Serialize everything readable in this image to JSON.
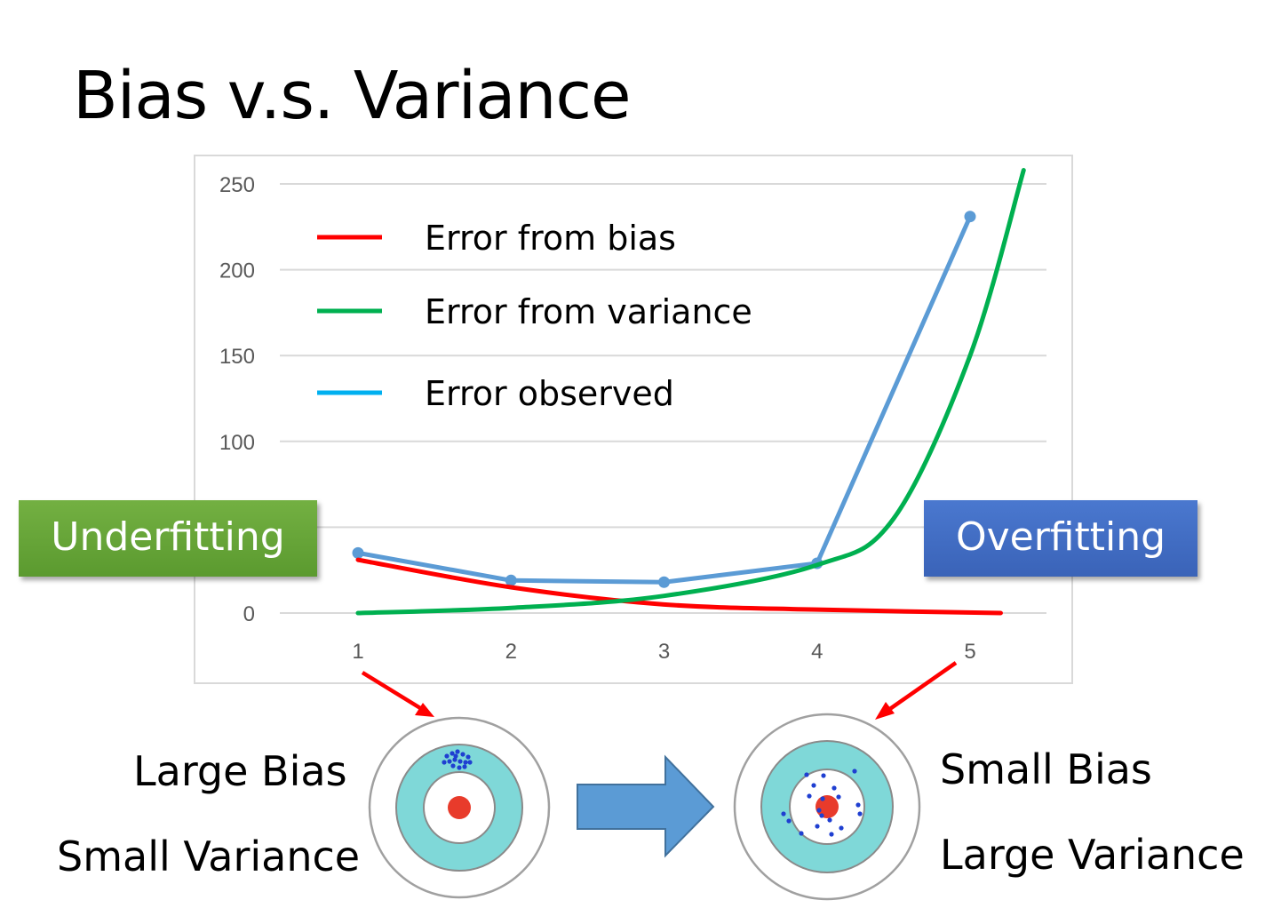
{
  "slide": {
    "title": "Bias v.s. Variance",
    "underfitting_label": "Underfitting",
    "overfitting_label": "Overfitting",
    "left_captions": [
      "Large Bias",
      "Small Variance"
    ],
    "right_captions": [
      "Small Bias",
      "Large Variance"
    ],
    "colors": {
      "underfitting_box": "#5e9f32",
      "overfitting_box": "#3f6cc2",
      "pointer_arrows": "#ff0000",
      "transition_arrow": "#5b9bd5",
      "target_ring": "#7fd8d8",
      "target_bullseye": "#e83b2b",
      "target_shots": "#1f3fd1"
    }
  },
  "chart_data": {
    "type": "line",
    "x": [
      1,
      2,
      3,
      4,
      5
    ],
    "ylim": [
      0,
      250
    ],
    "yticks": [
      0,
      50,
      100,
      150,
      200,
      250
    ],
    "ytick_labels": [
      "0",
      "",
      "100",
      "150",
      "200",
      "250"
    ],
    "xtick_labels": [
      "1",
      "2",
      "3",
      "4",
      "5"
    ],
    "grid": true,
    "legend_position": "top-left",
    "series": [
      {
        "name": "Error from bias",
        "color": "#ff0000",
        "smooth": true,
        "markers": false,
        "x": [
          1,
          2,
          3,
          4,
          5.2
        ],
        "values": [
          31,
          15,
          5,
          2,
          0
        ]
      },
      {
        "name": "Error from variance",
        "color": "#00b050",
        "smooth": true,
        "markers": false,
        "x": [
          1,
          2,
          3,
          4,
          4.5,
          5,
          5.35
        ],
        "values": [
          0,
          3,
          10,
          28,
          55,
          150,
          258
        ]
      },
      {
        "name": "Error observed",
        "color": "#00b0f0",
        "line_color": "#5b9bd5",
        "smooth": false,
        "markers": true,
        "x": [
          1,
          2,
          3,
          4,
          5
        ],
        "values": [
          35,
          19,
          18,
          29,
          231
        ]
      }
    ]
  }
}
